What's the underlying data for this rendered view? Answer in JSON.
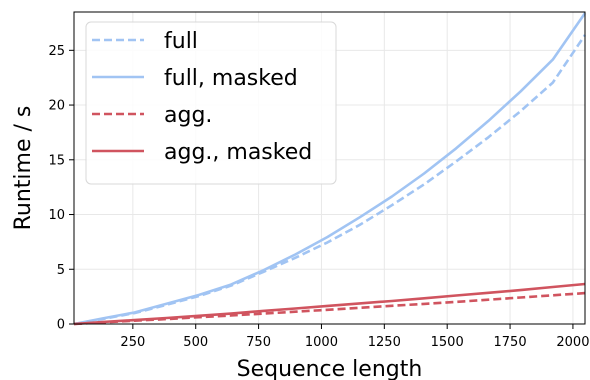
{
  "chart_data": {
    "type": "line",
    "xlabel": "Sequence length",
    "ylabel": "Runtime / s",
    "xlim": [
      16,
      2048
    ],
    "ylim": [
      0,
      28.5
    ],
    "x_ticks": [
      250,
      500,
      750,
      1000,
      1250,
      1500,
      1750,
      2000
    ],
    "y_ticks": [
      0,
      5,
      10,
      15,
      20,
      25
    ],
    "grid": true,
    "legend_position": "top-left",
    "x": [
      16,
      128,
      256,
      384,
      512,
      640,
      768,
      896,
      1024,
      1152,
      1280,
      1408,
      1536,
      1664,
      1792,
      1920,
      2048
    ],
    "series": [
      {
        "name": "full",
        "color": "#a1c4f3",
        "dash": "dashed",
        "values": [
          0.0,
          0.45,
          1.0,
          1.75,
          2.55,
          3.5,
          4.75,
          6.05,
          7.45,
          9.05,
          10.85,
          12.75,
          14.85,
          17.05,
          19.45,
          22.05,
          26.4
        ]
      },
      {
        "name": "full, masked",
        "color": "#a1c4f3",
        "dash": "solid",
        "values": [
          0.0,
          0.5,
          1.05,
          1.85,
          2.65,
          3.6,
          4.9,
          6.35,
          7.95,
          9.75,
          11.65,
          13.75,
          16.05,
          18.55,
          21.25,
          24.15,
          28.4
        ]
      },
      {
        "name": "agg.",
        "color": "#d0545f",
        "dash": "dashed",
        "values": [
          0.0,
          0.15,
          0.3,
          0.45,
          0.62,
          0.78,
          0.95,
          1.12,
          1.3,
          1.48,
          1.66,
          1.84,
          2.02,
          2.22,
          2.42,
          2.62,
          2.82
        ]
      },
      {
        "name": "agg., masked",
        "color": "#d0545f",
        "dash": "solid",
        "values": [
          0.0,
          0.18,
          0.36,
          0.55,
          0.75,
          0.95,
          1.2,
          1.42,
          1.65,
          1.88,
          2.1,
          2.35,
          2.6,
          2.85,
          3.1,
          3.38,
          3.65
        ]
      }
    ]
  }
}
